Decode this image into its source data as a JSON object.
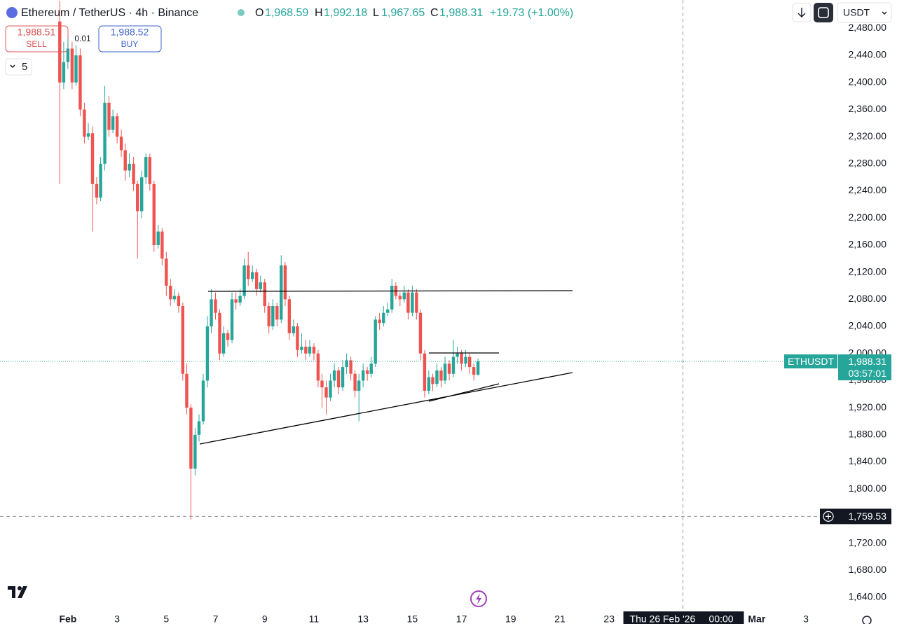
{
  "header": {
    "title": "Ethereum / TetherUS · 4h · Binance",
    "open_label": "O",
    "open": "1,968.59",
    "high_label": "H",
    "high": "1,992.18",
    "low_label": "L",
    "low": "1,967.65",
    "close_label": "C",
    "close": "1,988.31",
    "change": "+19.73 (+1.00%)"
  },
  "trade": {
    "sell_price": "1,988.51",
    "sell": "SELL",
    "spread": "0.01",
    "buy_price": "1,988.52",
    "buy": "BUY",
    "indicators": "5"
  },
  "toolbar": {
    "currency": "USDT"
  },
  "chart_data": {
    "type": "candlestick",
    "up_color": "#26a69a",
    "down_color": "#ef5350",
    "x": [
      -0.33,
      -0.17,
      0,
      0.17,
      0.33,
      0.5,
      0.67,
      0.83,
      1,
      1.17,
      1.33,
      1.5,
      1.67,
      1.83,
      2,
      2.17,
      2.33,
      2.5,
      2.67,
      2.83,
      3,
      3.17,
      3.33,
      3.5,
      3.67,
      3.83,
      4,
      4.17,
      4.33,
      4.5,
      4.67,
      4.83,
      5,
      5.17,
      5.33,
      5.5,
      5.67,
      5.83,
      6,
      6.17,
      6.33,
      6.5,
      6.67,
      6.83,
      7,
      7.17,
      7.33,
      7.5,
      7.67,
      7.83,
      8,
      8.17,
      8.33,
      8.5,
      8.67,
      8.83,
      9,
      9.17,
      9.33,
      9.5,
      9.67,
      9.83,
      10,
      10.17,
      10.33,
      10.5,
      10.67,
      10.83,
      11,
      11.17,
      11.33,
      11.5,
      11.67,
      11.83,
      12,
      12.17,
      12.33,
      12.5,
      12.67,
      12.83,
      13,
      13.17,
      13.33,
      13.5,
      13.67,
      13.83,
      14,
      14.17,
      14.33,
      14.5,
      14.67,
      14.83,
      15,
      15.17,
      15.33,
      15.5,
      15.67,
      15.83,
      16,
      16.17,
      16.33,
      16.5,
      16.67
    ],
    "open": [
      2490,
      2400,
      2430,
      2450,
      2400,
      2440,
      2360,
      2320,
      2325,
      2250,
      2230,
      2280,
      2370,
      2330,
      2350,
      2320,
      2300,
      2270,
      2280,
      2250,
      2210,
      2260,
      2290,
      2250,
      2160,
      2180,
      2140,
      2100,
      2080,
      2085,
      2070,
      1970,
      1920,
      1830,
      1880,
      1900,
      1960,
      2040,
      2080,
      2060,
      2000,
      2030,
      2020,
      2080,
      2075,
      2085,
      2130,
      2110,
      2120,
      2095,
      2105,
      2070,
      2040,
      2070,
      2050,
      2130,
      2080,
      2030,
      2040,
      2005,
      2010,
      2000,
      2010,
      2000,
      1960,
      1950,
      1935,
      1960,
      1975,
      1950,
      1980,
      1990,
      1970,
      1945,
      1960,
      1975,
      1970,
      1985,
      2050,
      2045,
      2060,
      2065,
      2100,
      2085,
      2080,
      2090,
      2060,
      2090,
      2060,
      2000,
      1945,
      1965,
      1955,
      1975,
      1960,
      1985,
      1970,
      1995,
      2000,
      1985,
      1995,
      1980,
      1968.59
    ],
    "high": [
      2520,
      2460,
      2465,
      2460,
      2455,
      2450,
      2370,
      2340,
      2335,
      2260,
      2290,
      2395,
      2380,
      2360,
      2355,
      2330,
      2310,
      2295,
      2290,
      2255,
      2270,
      2295,
      2295,
      2255,
      2190,
      2185,
      2150,
      2110,
      2095,
      2090,
      2075,
      1985,
      1925,
      1890,
      1910,
      1970,
      2055,
      2095,
      2090,
      2065,
      2040,
      2035,
      2090,
      2090,
      2095,
      2140,
      2150,
      2130,
      2125,
      2115,
      2110,
      2075,
      2080,
      2075,
      2145,
      2135,
      2085,
      2050,
      2045,
      2030,
      2020,
      2020,
      2015,
      2005,
      1970,
      1960,
      1970,
      1985,
      1980,
      1990,
      2000,
      1995,
      1975,
      1970,
      1985,
      1980,
      1995,
      2055,
      2060,
      2070,
      2075,
      2110,
      2105,
      2090,
      2100,
      2095,
      2100,
      2095,
      2065,
      2005,
      1975,
      1970,
      1985,
      1980,
      1995,
      1990,
      2020,
      2010,
      2005,
      2005,
      2000,
      1985,
      1992.18
    ],
    "low": [
      2250,
      2390,
      2420,
      2390,
      2395,
      2350,
      2310,
      2315,
      2180,
      2220,
      2225,
      2270,
      2320,
      2325,
      2310,
      2290,
      2255,
      2260,
      2240,
      2140,
      2200,
      2250,
      2240,
      2150,
      2155,
      2130,
      2085,
      2070,
      2075,
      2060,
      1960,
      1910,
      1755,
      1820,
      1870,
      1895,
      1950,
      2030,
      2050,
      1990,
      1995,
      2010,
      2015,
      2065,
      2070,
      2080,
      2100,
      2105,
      2085,
      2090,
      2060,
      2030,
      2035,
      2040,
      2045,
      2070,
      2020,
      2025,
      1995,
      2000,
      1990,
      1995,
      1990,
      1950,
      1920,
      1910,
      1930,
      1950,
      1940,
      1945,
      1970,
      1960,
      1935,
      1900,
      1950,
      1960,
      1965,
      1980,
      2035,
      2040,
      2055,
      2060,
      2080,
      2070,
      2075,
      2050,
      2055,
      2050,
      1990,
      1935,
      1940,
      1945,
      1950,
      1950,
      1955,
      1960,
      1965,
      1985,
      1975,
      1980,
      1970,
      1960,
      1967.65
    ],
    "close": [
      2400,
      2430,
      2450,
      2400,
      2440,
      2360,
      2320,
      2325,
      2250,
      2230,
      2280,
      2370,
      2330,
      2350,
      2320,
      2300,
      2270,
      2280,
      2250,
      2210,
      2260,
      2290,
      2250,
      2160,
      2180,
      2140,
      2100,
      2080,
      2085,
      2070,
      1970,
      1920,
      1830,
      1880,
      1900,
      1960,
      2040,
      2080,
      2060,
      2000,
      2030,
      2020,
      2080,
      2075,
      2085,
      2130,
      2110,
      2120,
      2095,
      2105,
      2070,
      2040,
      2070,
      2050,
      2130,
      2080,
      2030,
      2040,
      2005,
      2010,
      2000,
      2010,
      2000,
      1960,
      1950,
      1935,
      1960,
      1975,
      1950,
      1980,
      1990,
      1970,
      1945,
      1960,
      1975,
      1970,
      1985,
      2050,
      2045,
      2060,
      2065,
      2100,
      2085,
      2080,
      2090,
      2060,
      2090,
      2060,
      2000,
      1945,
      1965,
      1955,
      1975,
      1960,
      1985,
      1970,
      1995,
      2000,
      1985,
      1995,
      1980,
      1968.59,
      1988.31
    ],
    "xlim": [
      -2.76,
      31.28
    ],
    "xticks": [
      {
        "value": 0,
        "label": "Feb"
      },
      {
        "value": 2,
        "label": "3"
      },
      {
        "value": 4,
        "label": "5"
      },
      {
        "value": 6,
        "label": "7"
      },
      {
        "value": 8,
        "label": "9"
      },
      {
        "value": 10,
        "label": "11"
      },
      {
        "value": 12,
        "label": "13"
      },
      {
        "value": 14,
        "label": "15"
      },
      {
        "value": 16,
        "label": "17"
      },
      {
        "value": 18,
        "label": "19"
      },
      {
        "value": 20,
        "label": "21"
      },
      {
        "value": 22,
        "label": "23"
      },
      {
        "value": 28,
        "label": "Mar"
      },
      {
        "value": 30,
        "label": "3"
      }
    ],
    "ylim": [
      1620.4,
      2521.7
    ],
    "yticks": [
      {
        "value": 1640,
        "label": "1,640.00"
      },
      {
        "value": 1680,
        "label": "1,680.00"
      },
      {
        "value": 1720,
        "label": "1,720.00"
      },
      {
        "value": 1760,
        "label": "1,760.00"
      },
      {
        "value": 1800,
        "label": "1,800.00"
      },
      {
        "value": 1840,
        "label": "1,840.00"
      },
      {
        "value": 1880,
        "label": "1,880.00"
      },
      {
        "value": 1920,
        "label": "1,920.00"
      },
      {
        "value": 1960,
        "label": "1,960.00"
      },
      {
        "value": 2000,
        "label": "2,000.00"
      },
      {
        "value": 2040,
        "label": "2,040.00"
      },
      {
        "value": 2080,
        "label": "2,080.00"
      },
      {
        "value": 2120,
        "label": "2,120.00"
      },
      {
        "value": 2160,
        "label": "2,160.00"
      },
      {
        "value": 2200,
        "label": "2,200.00"
      },
      {
        "value": 2240,
        "label": "2,240.00"
      },
      {
        "value": 2280,
        "label": "2,280.00"
      },
      {
        "value": 2320,
        "label": "2,320.00"
      },
      {
        "value": 2360,
        "label": "2,360.00"
      },
      {
        "value": 2400,
        "label": "2,400.00"
      },
      {
        "value": 2440,
        "label": "2,440.00"
      },
      {
        "value": 2480,
        "label": "2,480.00"
      }
    ],
    "last_price": {
      "value": 1988.31,
      "label": "1,988.31",
      "symbol": "ETHUSDT",
      "countdown": "03:57:01"
    },
    "crosshair": {
      "x": 25,
      "x_label": "Thu 26 Feb '26",
      "x_time": "00:00",
      "y": 1759.53,
      "y_label": "1,759.53"
    }
  }
}
